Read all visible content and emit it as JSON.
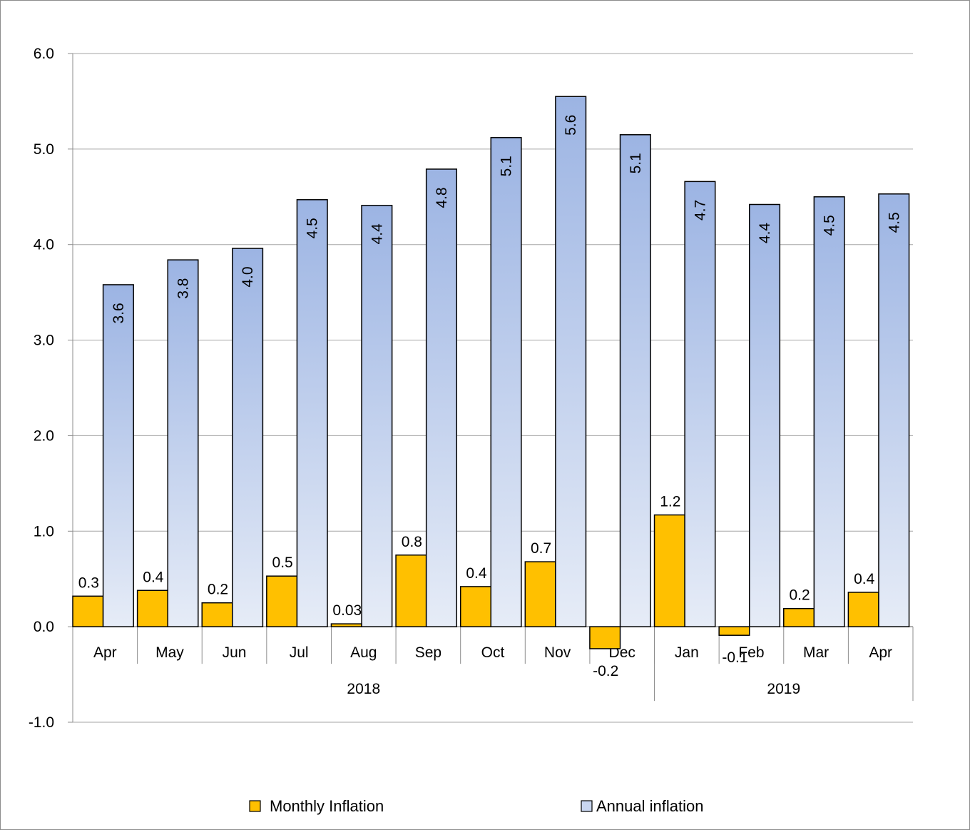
{
  "chart_data": {
    "type": "bar",
    "ylim": [
      -1.0,
      6.0
    ],
    "y_ticks": [
      "6.0",
      "5.0",
      "4.0",
      "3.0",
      "2.0",
      "1.0",
      "0.0",
      "-1.0"
    ],
    "grid": true,
    "legend_position": "bottom",
    "categories": [
      "Apr",
      "May",
      "Jun",
      "Jul",
      "Aug",
      "Sep",
      "Oct",
      "Nov",
      "Dec",
      "Jan",
      "Feb",
      "Mar",
      "Apr"
    ],
    "groups": [
      {
        "label": "2018",
        "count": 9
      },
      {
        "label": "2019",
        "count": 4
      }
    ],
    "series": [
      {
        "name": "Monthly Inflation",
        "color": "#FFC000",
        "values": [
          0.32,
          0.38,
          0.25,
          0.53,
          0.03,
          0.75,
          0.42,
          0.68,
          -0.23,
          1.17,
          -0.09,
          0.19,
          0.36
        ],
        "labels": [
          "0.3",
          "0.4",
          "0.2",
          "0.5",
          "0.03",
          "0.8",
          "0.4",
          "0.7",
          "-0.2",
          "1.2",
          "-0.1",
          "0.2",
          "0.4"
        ]
      },
      {
        "name": "Annual inflation",
        "color": "#A4BCE6",
        "values": [
          3.58,
          3.84,
          3.96,
          4.47,
          4.41,
          4.79,
          5.12,
          5.55,
          5.15,
          4.66,
          4.42,
          4.5,
          4.53
        ],
        "labels": [
          "3.6",
          "3.8",
          "4.0",
          "4.5",
          "4.4",
          "4.8",
          "5.1",
          "5.6",
          "5.1",
          "4.7",
          "4.4",
          "4.5",
          "4.5"
        ]
      }
    ]
  }
}
